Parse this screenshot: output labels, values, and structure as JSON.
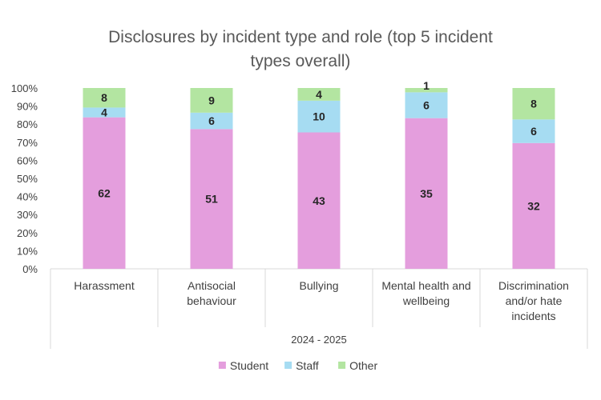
{
  "chart_data": {
    "type": "bar",
    "stacked": "percent",
    "title": "Disclosures by incident type and role (top 5 incident types overall)",
    "title_lines": [
      "Disclosures by incident type and role (top 5 incident",
      "types overall)"
    ],
    "categories": [
      [
        "Harassment"
      ],
      [
        "Antisocial",
        "behaviour"
      ],
      [
        "Bullying"
      ],
      [
        "Mental health and",
        "wellbeing"
      ],
      [
        "Discrimination",
        "and/or hate",
        "incidents"
      ]
    ],
    "category_group": "2024 - 2025",
    "series": [
      {
        "name": "Student",
        "color": "#e49edd",
        "values": [
          62,
          51,
          43,
          35,
          32
        ]
      },
      {
        "name": "Staff",
        "color": "#a6dcf2",
        "values": [
          4,
          6,
          10,
          6,
          6
        ]
      },
      {
        "name": "Other",
        "color": "#b3e5a1",
        "values": [
          8,
          9,
          4,
          1,
          8
        ]
      }
    ],
    "ylim": [
      0,
      100
    ],
    "y_ticks": [
      "0%",
      "10%",
      "20%",
      "30%",
      "40%",
      "50%",
      "60%",
      "70%",
      "80%",
      "90%",
      "100%"
    ],
    "xlabel": "",
    "ylabel": "",
    "legend_position": "bottom",
    "grid": false
  }
}
